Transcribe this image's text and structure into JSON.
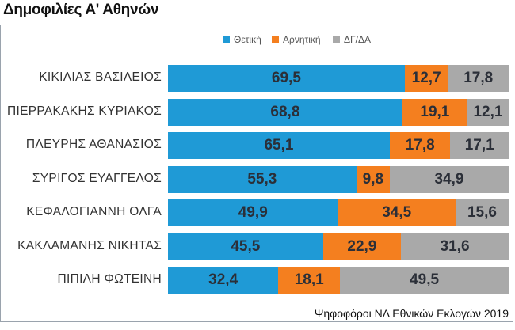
{
  "title": "Δημοφιλίες Α' Αθηνών",
  "footer": "Ψηφοφόροι ΝΔ Εθνικών Εκλογών 2019",
  "colors": {
    "positive": "#1f9ad6",
    "negative": "#f47f1f",
    "dk": "#a9a9a9"
  },
  "chart_data": {
    "type": "bar",
    "orientation": "horizontal",
    "stacked": true,
    "title": "Δημοφιλίες Α' Αθηνών",
    "xlabel": "",
    "ylabel": "",
    "xlim": [
      0,
      100
    ],
    "legend_position": "top-center",
    "categories": [
      "ΚΙΚΙΛΙΑΣ ΒΑΣΙΛΕΙΟΣ",
      "ΠΙΕΡΡΑΚΑΚΗΣ ΚΥΡΙΑΚΟΣ",
      "ΠΛΕΥΡΗΣ ΑΘΑΝΑΣΙΟΣ",
      "ΣΥΡΙΓΟΣ ΕΥΑΓΓΕΛΟΣ",
      "ΚΕΦΑΛΟΓΙΑΝΝΗ ΟΛΓΑ",
      "ΚΑΚΛΑΜΑΝΗΣ ΝΙΚΗΤΑΣ",
      "ΠΙΠΙΛΗ ΦΩΤΕΙΝΗ"
    ],
    "series": [
      {
        "name": "Θετική",
        "color": "#1f9ad6",
        "values": [
          69.5,
          68.8,
          65.1,
          55.3,
          49.9,
          45.5,
          32.4
        ],
        "labels": [
          "69,5",
          "68,8",
          "65,1",
          "55,3",
          "49,9",
          "45,5",
          "32,4"
        ]
      },
      {
        "name": "Αρνητική",
        "color": "#f47f1f",
        "values": [
          12.7,
          19.1,
          17.8,
          9.8,
          34.5,
          22.9,
          18.1
        ],
        "labels": [
          "12,7",
          "19,1",
          "17,8",
          "9,8",
          "34,5",
          "22,9",
          "18,1"
        ]
      },
      {
        "name": "ΔΓ/ΔΑ",
        "color": "#a9a9a9",
        "values": [
          17.8,
          12.1,
          17.1,
          34.9,
          15.6,
          31.6,
          49.5
        ],
        "labels": [
          "17,8",
          "12,1",
          "17,1",
          "34,9",
          "15,6",
          "31,6",
          "49,5"
        ]
      }
    ]
  }
}
